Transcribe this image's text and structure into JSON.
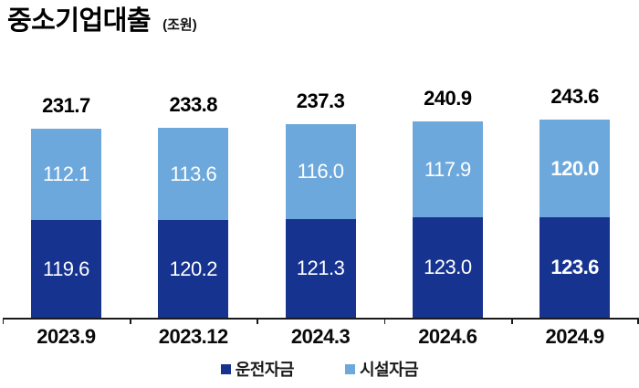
{
  "header": {
    "title": "중소기업대출",
    "unit": "(조원)"
  },
  "legend": {
    "items": [
      {
        "label": "운전자금",
        "color": "#16338F"
      },
      {
        "label": "시설자금",
        "color": "#6CA8DB"
      }
    ]
  },
  "colors": {
    "working_capital": "#16338F",
    "facility_funds": "#6CA8DB",
    "axis": "#1a1a1a",
    "label_inside": "#ffffff",
    "label_total": "#000000"
  },
  "chart_data": {
    "type": "bar",
    "stacked": true,
    "title": "중소기업대출",
    "unit": "조원",
    "categories": [
      "2023.9",
      "2023.12",
      "2024.3",
      "2024.6",
      "2024.9"
    ],
    "series": [
      {
        "name": "운전자금",
        "color": "#16338F",
        "values": [
          119.6,
          120.2,
          121.3,
          123.0,
          123.6
        ]
      },
      {
        "name": "시설자금",
        "color": "#6CA8DB",
        "values": [
          112.1,
          113.6,
          116.0,
          117.9,
          120.0
        ]
      }
    ],
    "totals": [
      231.7,
      233.8,
      237.3,
      240.9,
      243.6
    ],
    "value_labels": "inside-white, totals above bars",
    "legend_position": "bottom",
    "grid": false,
    "highlight_last_category": true
  }
}
